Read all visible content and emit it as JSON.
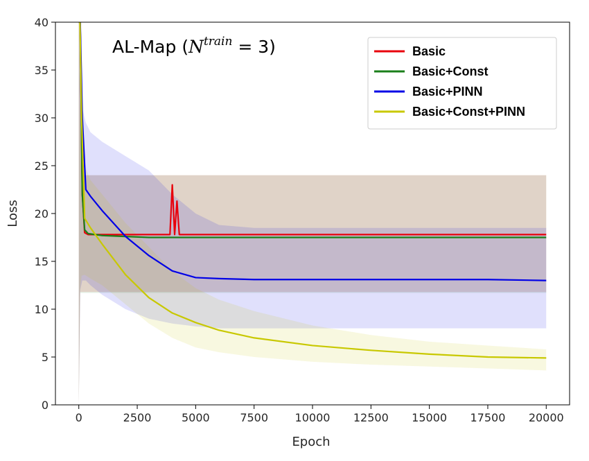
{
  "chart_data": {
    "type": "line",
    "title_prefix": "AL-Map (",
    "title_math_base": "N",
    "title_math_sup": "train",
    "title_math_rest": " = 3)",
    "xlabel": "Epoch",
    "ylabel": "Loss",
    "xlim": [
      -1000,
      21000
    ],
    "ylim": [
      0,
      40
    ],
    "xticks": [
      0,
      2500,
      5000,
      7500,
      10000,
      12500,
      15000,
      17500,
      20000
    ],
    "yticks": [
      0,
      5,
      10,
      15,
      20,
      25,
      30,
      35,
      40
    ],
    "grid": false,
    "legend_position": "top-right",
    "series": [
      {
        "name": "Basic",
        "color": "#e8000b",
        "x": [
          0,
          60,
          150,
          250,
          400,
          1000,
          2000,
          3000,
          3900,
          4000,
          4100,
          4200,
          4300,
          5000,
          7500,
          10000,
          12500,
          15000,
          17500,
          20000
        ],
        "y": [
          40,
          40,
          22,
          18.0,
          17.8,
          17.8,
          17.8,
          17.8,
          17.8,
          23.0,
          17.8,
          21.3,
          17.8,
          17.8,
          17.8,
          17.8,
          17.8,
          17.8,
          17.8,
          17.8
        ],
        "band_upper": [
          40,
          40,
          24,
          24,
          24,
          24,
          24,
          24,
          24,
          24,
          24,
          24,
          24,
          24,
          24,
          24,
          24,
          24,
          24,
          24
        ],
        "band_lower": [
          0,
          11.8,
          11.8,
          11.8,
          11.8,
          11.8,
          11.8,
          11.8,
          11.8,
          11.8,
          11.8,
          11.8,
          11.8,
          11.8,
          11.8,
          11.8,
          11.8,
          11.8,
          11.8,
          11.8
        ]
      },
      {
        "name": "Basic+Const",
        "color": "#1a7f1a",
        "x": [
          0,
          60,
          150,
          250,
          400,
          1000,
          2000,
          3000,
          5000,
          7500,
          10000,
          12500,
          15000,
          17500,
          20000
        ],
        "y": [
          40,
          40,
          22,
          18.3,
          17.9,
          17.7,
          17.6,
          17.5,
          17.5,
          17.5,
          17.5,
          17.5,
          17.5,
          17.5,
          17.5
        ],
        "band_upper": [
          40,
          40,
          24,
          24,
          24,
          24,
          24,
          24,
          24,
          24,
          24,
          24,
          24,
          24,
          24
        ],
        "band_lower": [
          0,
          11.7,
          11.7,
          11.7,
          11.7,
          11.7,
          11.7,
          11.7,
          11.7,
          11.7,
          11.7,
          11.7,
          11.7,
          11.7,
          11.7
        ]
      },
      {
        "name": "Basic+PINN",
        "color": "#0000e6",
        "x": [
          0,
          60,
          150,
          300,
          500,
          1000,
          2000,
          3000,
          4000,
          5000,
          6000,
          7500,
          10000,
          12500,
          15000,
          17500,
          20000
        ],
        "y": [
          40,
          40,
          30,
          22.5,
          21.8,
          20.3,
          17.6,
          15.6,
          14.0,
          13.3,
          13.2,
          13.1,
          13.1,
          13.1,
          13.1,
          13.1,
          13.0
        ],
        "band_upper": [
          40,
          40,
          31,
          29.5,
          28.5,
          27.5,
          26,
          24.5,
          22,
          20,
          18.8,
          18.5,
          18.5,
          18.5,
          18.5,
          18.5,
          18.5
        ],
        "band_lower": [
          0,
          12,
          13,
          13,
          12.5,
          11.5,
          10,
          9,
          8.5,
          8.2,
          8.0,
          8.0,
          8.0,
          8.0,
          8.0,
          8.0,
          8.0
        ]
      },
      {
        "name": "Basic+Const+PINN",
        "color": "#c8c800",
        "x": [
          0,
          50,
          120,
          250,
          500,
          1000,
          2000,
          3000,
          4000,
          5000,
          6000,
          7500,
          10000,
          12500,
          15000,
          17500,
          20000
        ],
        "y": [
          40,
          40,
          30,
          19.5,
          18.5,
          16.8,
          13.6,
          11.2,
          9.6,
          8.6,
          7.8,
          7.0,
          6.2,
          5.7,
          5.3,
          5.0,
          4.9
        ],
        "band_upper": [
          40,
          40,
          33,
          25,
          23.5,
          22,
          19,
          16.5,
          14,
          12.2,
          11,
          9.8,
          8.3,
          7.3,
          6.6,
          6.2,
          5.8
        ],
        "band_lower": [
          0,
          11.8,
          13.5,
          13.6,
          13.2,
          12.5,
          10.5,
          8.5,
          7.0,
          6.0,
          5.5,
          5.0,
          4.5,
          4.2,
          4.0,
          3.8,
          3.6
        ]
      }
    ]
  }
}
